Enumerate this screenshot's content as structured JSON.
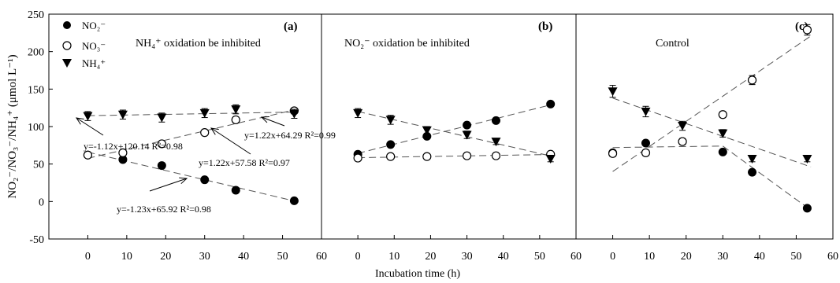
{
  "ylabel": "NO₂⁻/NO₃⁻/NH₄⁺ (μmol L⁻¹)",
  "xlabel": "Incubation time (h)",
  "yticks": [
    "-50",
    "0",
    "50",
    "100",
    "150",
    "200",
    "250"
  ],
  "xticks": [
    "0",
    "10",
    "20",
    "30",
    "40",
    "50",
    "60"
  ],
  "legend": [
    {
      "label": "NO₂⁻",
      "marker": "filled-circle"
    },
    {
      "label": "NO₃⁻",
      "marker": "open-circle"
    },
    {
      "label": "NH₄⁺",
      "marker": "filled-triangle-down"
    }
  ],
  "chart_data": [
    {
      "type": "scatter",
      "panel_letter": "(a)",
      "title": "NH₄⁺ oxidation be inhibited",
      "xlim": [
        -10,
        60
      ],
      "ylim": [
        -50,
        250
      ],
      "x": [
        0,
        9,
        19,
        30,
        38,
        53
      ],
      "series": [
        {
          "name": "NO₂⁻",
          "values": [
            62,
            56,
            48,
            29,
            15,
            1
          ],
          "errors": [
            2,
            2,
            2,
            2,
            2,
            1
          ]
        },
        {
          "name": "NO₃⁻",
          "values": [
            62,
            65,
            77,
            92,
            109,
            121
          ],
          "errors": [
            3,
            3,
            3,
            3,
            4,
            3
          ]
        },
        {
          "name": "NH₄⁺",
          "values": [
            114,
            116,
            112,
            118,
            123,
            117
          ],
          "errors": [
            6,
            6,
            6,
            6,
            6,
            6
          ]
        }
      ],
      "fits": [
        {
          "series": "NO₃⁻",
          "equation": "y=1.22x+57.58",
          "r2": "R²=0.97",
          "slope": 1.22,
          "intercept": 57.58
        },
        {
          "series": "NO₂⁻",
          "equation": "y=-1.23x+65.92",
          "r2": "R²=0.98",
          "slope": -1.23,
          "intercept": 65.92
        },
        {
          "series": "NH₄⁺",
          "slope": 0.09,
          "intercept": 114.5
        }
      ]
    },
    {
      "type": "scatter",
      "panel_letter": "(b)",
      "title": "NO₂⁻ oxidation be inhibited",
      "xlim": [
        -10,
        60
      ],
      "ylim": [
        -50,
        250
      ],
      "x": [
        0,
        9,
        19,
        30,
        38,
        53
      ],
      "series": [
        {
          "name": "NO₂⁻",
          "values": [
            63,
            76,
            87,
            102,
            108,
            130
          ],
          "errors": [
            2,
            2,
            2,
            2,
            2,
            2
          ]
        },
        {
          "name": "NO₃⁻",
          "values": [
            58,
            60,
            60,
            61,
            61,
            63
          ],
          "errors": [
            2,
            2,
            2,
            2,
            2,
            2
          ]
        },
        {
          "name": "NH₄⁺",
          "values": [
            118,
            109,
            95,
            89,
            80,
            57
          ],
          "errors": [
            6,
            6,
            5,
            5,
            4,
            4
          ]
        }
      ],
      "fits": [
        {
          "series": "NH₄⁺",
          "equation": "y=-1.12x+120.14",
          "r2": "R²=0.98",
          "slope": -1.12,
          "intercept": 120.14
        },
        {
          "series": "NO₂⁻",
          "equation": "y=1.22x+64.29",
          "r2": "R²=0.99",
          "slope": 1.22,
          "intercept": 64.29
        },
        {
          "series": "NO₃⁻",
          "slope": 0.08,
          "intercept": 58.5
        }
      ]
    },
    {
      "type": "scatter",
      "panel_letter": "(c)",
      "title": "Control",
      "xlim": [
        -10,
        60
      ],
      "ylim": [
        -50,
        250
      ],
      "x": [
        0,
        9,
        19,
        30,
        38,
        53
      ],
      "series": [
        {
          "name": "NO₂⁻",
          "values": [
            65,
            78,
            80,
            66,
            39,
            -9
          ],
          "errors": [
            2,
            2,
            2,
            2,
            2,
            2
          ]
        },
        {
          "name": "NO₃⁻",
          "values": [
            64,
            65,
            80,
            116,
            162,
            229
          ],
          "errors": [
            4,
            4,
            4,
            4,
            6,
            7
          ]
        },
        {
          "name": "NH₄⁺",
          "values": [
            147,
            120,
            101,
            91,
            57,
            57
          ],
          "errors": [
            8,
            7,
            6,
            5,
            4,
            4
          ]
        }
      ],
      "fits": [
        {
          "series": "NO₃⁻",
          "slope": 3.35,
          "intercept": 40
        },
        {
          "series": "NH₄⁺",
          "slope": -1.7,
          "intercept": 138
        },
        {
          "series": "NO₂⁻",
          "segments": [
            [
              0,
              72,
              30,
              74
            ],
            [
              30,
              74,
              53,
              -8
            ]
          ]
        }
      ]
    }
  ]
}
